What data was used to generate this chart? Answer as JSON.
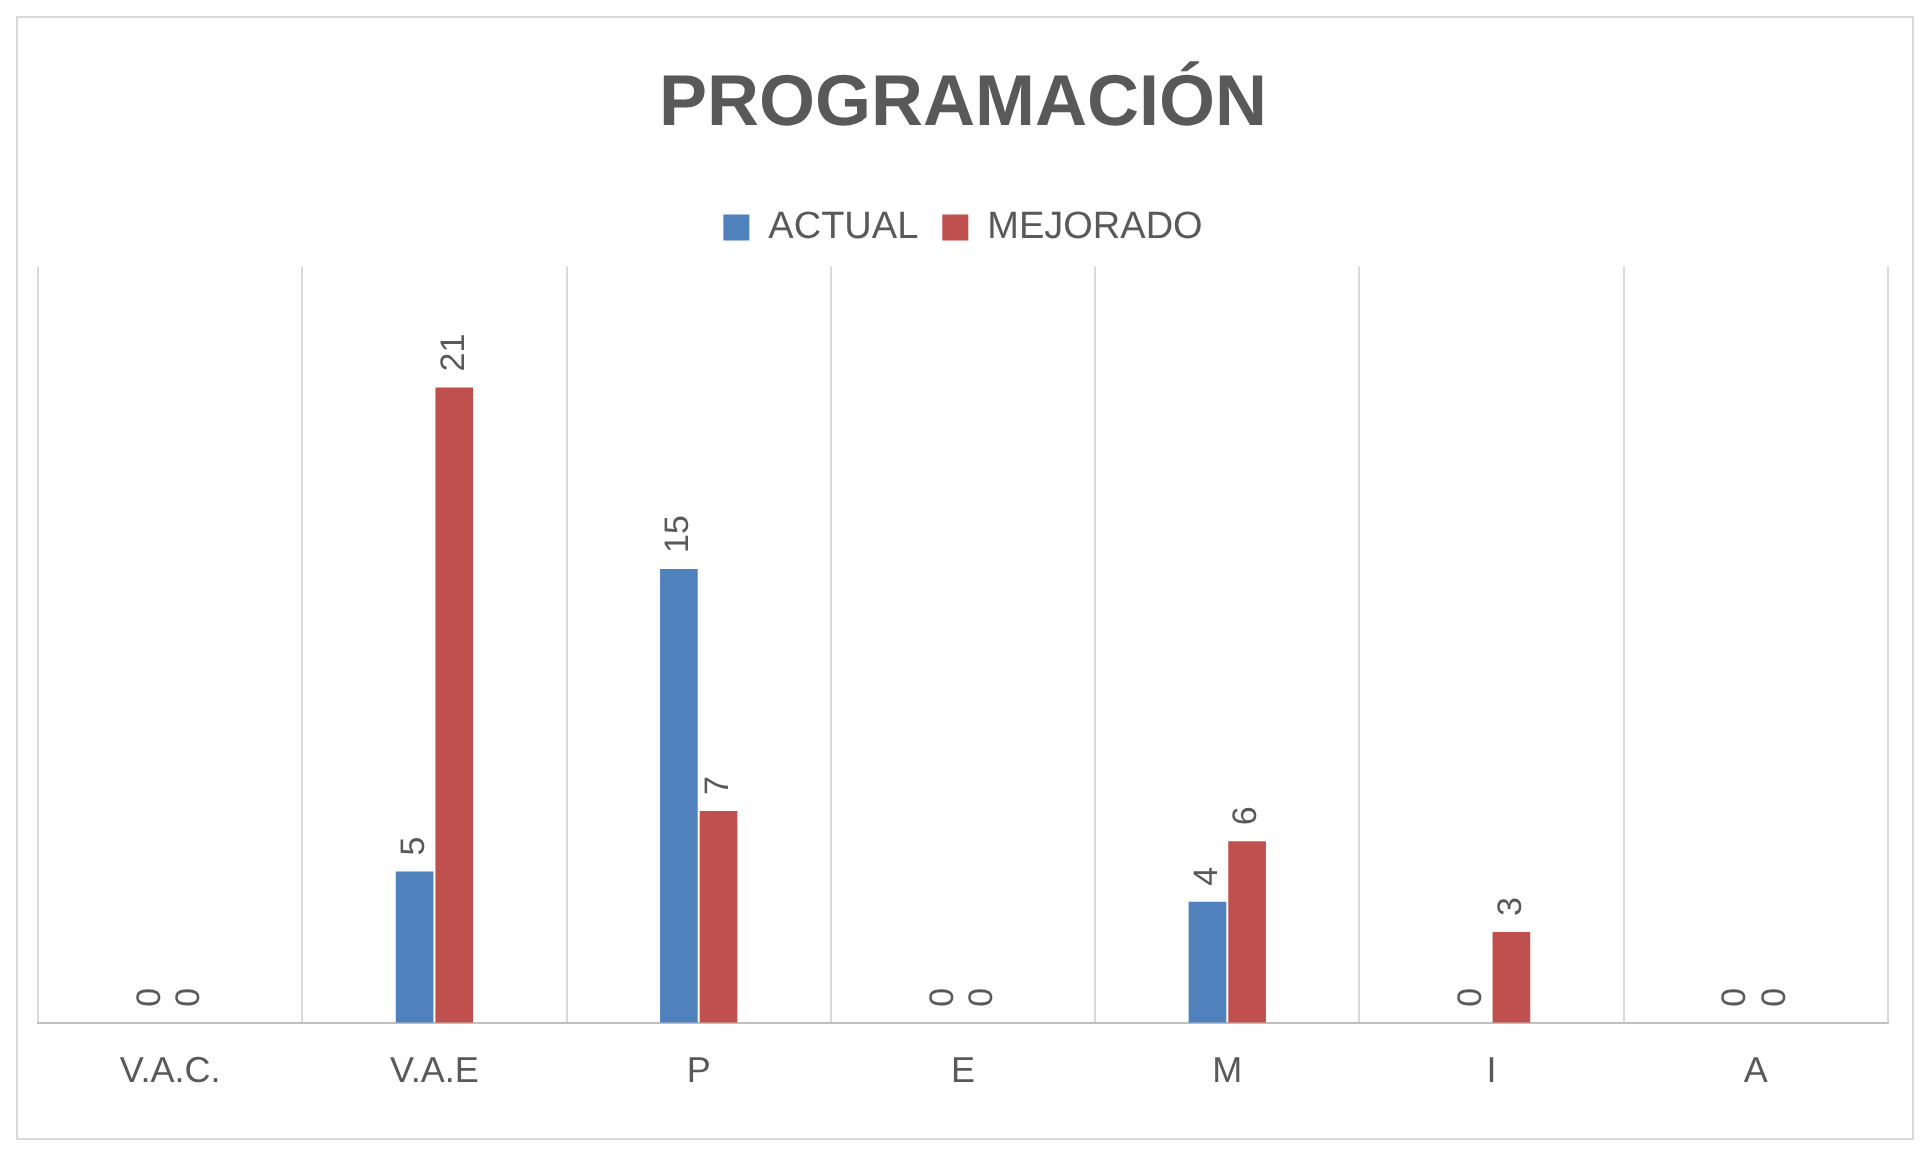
{
  "chart_data": {
    "type": "bar",
    "title": "PROGRAMACIÓN",
    "categories": [
      "V.A.C.",
      "V.A.E",
      "P",
      "E",
      "M",
      "I",
      "A"
    ],
    "series": [
      {
        "name": "ACTUAL",
        "color": "#4f81bd",
        "values": [
          0,
          5,
          15,
          0,
          4,
          0,
          0
        ]
      },
      {
        "name": "MEJORADO",
        "color": "#c0504d",
        "values": [
          0,
          21,
          7,
          0,
          6,
          3,
          0
        ]
      }
    ],
    "data_labels": true,
    "grid": "x",
    "legend": "top"
  }
}
